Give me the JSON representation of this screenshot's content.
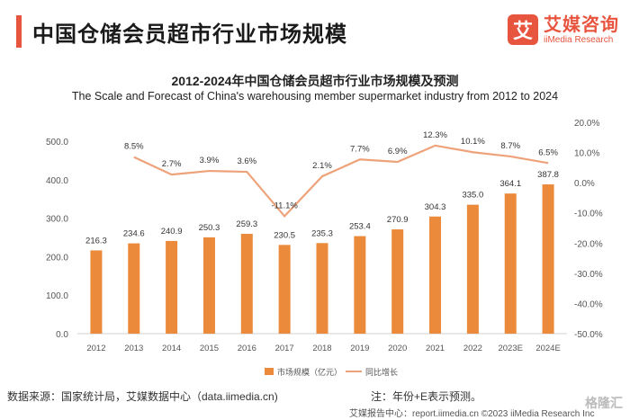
{
  "header": {
    "title": "中国仓储会员超市行业市场规模",
    "brand_logo_char": "艾",
    "brand_cn": "艾媒咨询",
    "brand_en": "iiMedia Research"
  },
  "footer": {
    "source": "数据来源：国家统计局，艾媒数据中心（data.iimedia.cn)",
    "note": "注：年份+E表示预测。",
    "bottom": "艾媒报告中心：report.iimedia.cn ©2023  iiMedia Research Inc",
    "watermark": "格隆汇"
  },
  "colors": {
    "bar": "#ea8a3a",
    "line": "#eda27a",
    "accent": "#e8553f"
  },
  "chart_data": {
    "type": "bar",
    "title": "2012-2024年中国仓储会员超市行业市场规模及预测",
    "subtitle": "The Scale and Forecast of China's warehousing member supermarket industry from 2012 to 2024",
    "categories": [
      "2012",
      "2013",
      "2014",
      "2015",
      "2016",
      "2017",
      "2018",
      "2019",
      "2020",
      "2021",
      "2022",
      "2023E",
      "2024E"
    ],
    "series": [
      {
        "name": "市场规模（亿元）",
        "type": "bar",
        "axis": "left",
        "values": [
          216.3,
          234.6,
          240.9,
          250.3,
          259.3,
          230.5,
          235.3,
          253.4,
          270.9,
          304.3,
          335.0,
          364.1,
          387.8
        ],
        "labels": [
          "216.3",
          "234.6",
          "240.9",
          "250.3",
          "259.3",
          "230.5",
          "235.3",
          "253.4",
          "270.9",
          "304.3",
          "335.0",
          "364.1",
          "387.8"
        ]
      },
      {
        "name": "同比增长",
        "type": "line",
        "axis": "right",
        "values": [
          null,
          8.5,
          2.7,
          3.9,
          3.6,
          -11.1,
          2.1,
          7.7,
          6.9,
          12.3,
          10.1,
          8.7,
          6.5
        ],
        "labels": [
          "",
          "8.5%",
          "2.7%",
          "3.9%",
          "3.6%",
          "-11.1%",
          "2.1%",
          "7.7%",
          "6.9%",
          "12.3%",
          "10.1%",
          "8.7%",
          "6.5%"
        ]
      }
    ],
    "ylim": [
      0,
      500
    ],
    "yticks": [
      "0.0",
      "100.0",
      "200.0",
      "300.0",
      "400.0",
      "500.0"
    ],
    "y2lim": [
      -50,
      20
    ],
    "y2ticks": [
      "-50.0%",
      "-40.0%",
      "-30.0%",
      "-20.0%",
      "-10.0%",
      "0.0%",
      "10.0%",
      "20.0%"
    ],
    "legend_position": "bottom"
  }
}
